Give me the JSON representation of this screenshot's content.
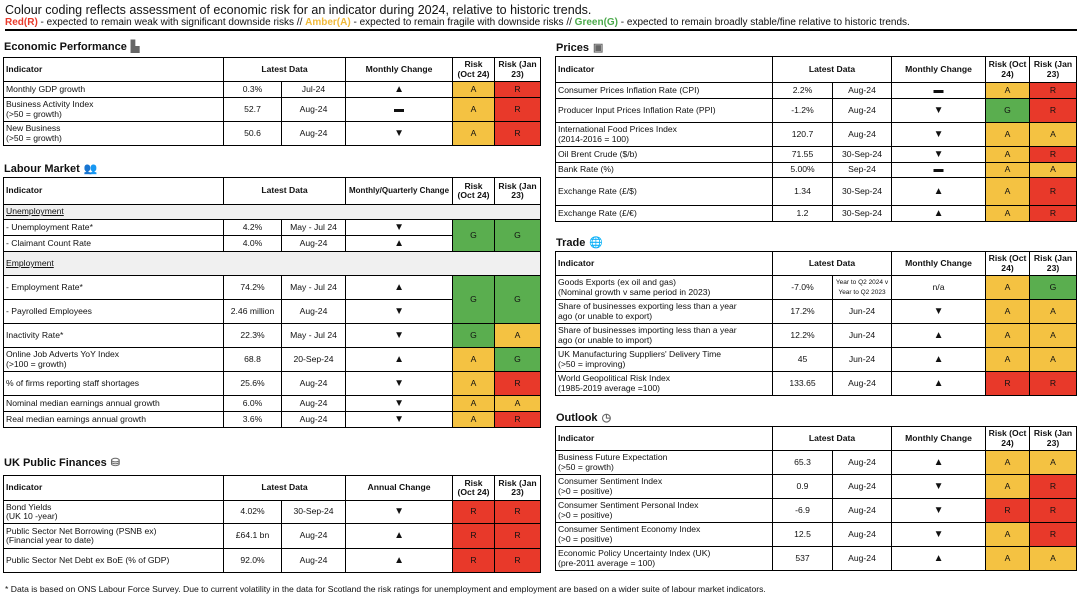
{
  "intro": "Colour coding reflects assessment of economic risk for an indicator during 2024, relative to historic trends.",
  "legend": {
    "red_label": "Red(R)",
    "red_text": " - expected to remain weak with significant downside risks // ",
    "amber_label": "Amber(A)",
    "amber_text": " - expected to remain fragile with downside risks // ",
    "green_label": "Green(G)",
    "green_text": " - expected to remain broadly stable/fine relative to historic trends."
  },
  "colors": {
    "red": "#e8392a",
    "amber": "#f4c242",
    "green": "#5aae4f"
  },
  "change_glyphs": {
    "up": "▲",
    "down": "▼",
    "flat": "▬"
  },
  "tables": [
    {
      "id": "economic",
      "title": "Economic Performance",
      "icon": "factory-icon",
      "icon_glyph": "▙",
      "headers": [
        "Indicator",
        "Latest Data",
        "Monthly Change",
        "Risk (Oct 24)",
        "Risk (Jan 23)"
      ],
      "rows": [
        {
          "indicator": "Monthly GDP growth",
          "value": "0.3%",
          "date": "Jul-24",
          "change": "up",
          "risk_oct": "A",
          "risk_jan": "R"
        },
        {
          "indicator": "Business Activity Index",
          "sub": "(>50 = growth)",
          "value": "52.7",
          "date": "Aug-24",
          "change": "flat",
          "risk_oct": "A",
          "risk_jan": "R"
        },
        {
          "indicator": "New Business",
          "sub": "(>50 = growth)",
          "value": "50.6",
          "date": "Aug-24",
          "change": "down",
          "risk_oct": "A",
          "risk_jan": "R"
        }
      ]
    },
    {
      "id": "labour",
      "title": "Labour Market",
      "icon": "people-icon",
      "icon_glyph": "👥",
      "headers": [
        "Indicator",
        "Latest Data",
        "Monthly/Quarterly Change",
        "Risk (Oct 24)",
        "Risk (Jan 23)"
      ],
      "rows": [
        {
          "group": "Unemployment"
        },
        {
          "indicator": "- Unemployment Rate*",
          "indent": true,
          "value": "4.2%",
          "date": "May - Jul 24",
          "change": "down",
          "risk_oct": "G",
          "risk_jan": "G",
          "span": 2
        },
        {
          "indicator": "- Claimant Count Rate",
          "indent": true,
          "value": "4.0%",
          "date": "Aug-24",
          "change": "up"
        },
        {
          "group": "Employment"
        },
        {
          "indicator": "- Employment Rate*",
          "indent": true,
          "value": "74.2%",
          "date": "May - Jul 24",
          "change": "up",
          "risk_oct": "G",
          "risk_jan": "G",
          "span": 2
        },
        {
          "indicator": "- Payrolled Employees",
          "indent": true,
          "value": "2.46 million",
          "date": "Aug-24",
          "change": "down"
        },
        {
          "indicator": "Inactivity Rate*",
          "value": "22.3%",
          "date": "May - Jul 24",
          "change": "down",
          "risk_oct": "G",
          "risk_jan": "A"
        },
        {
          "indicator": "Online Job Adverts YoY Index",
          "sub": "(>100 = growth)",
          "value": "68.8",
          "date": "20-Sep-24",
          "change": "up",
          "risk_oct": "A",
          "risk_jan": "G"
        },
        {
          "indicator": "% of firms reporting staff shortages",
          "value": "25.6%",
          "date": "Aug-24",
          "change": "down",
          "risk_oct": "A",
          "risk_jan": "R"
        },
        {
          "indicator": "Nominal median earnings annual growth",
          "value": "6.0%",
          "date": "Aug-24",
          "change": "down",
          "risk_oct": "A",
          "risk_jan": "A"
        },
        {
          "indicator": "Real median earnings annual growth",
          "value": "3.6%",
          "date": "Aug-24",
          "change": "down",
          "risk_oct": "A",
          "risk_jan": "R"
        }
      ]
    },
    {
      "id": "public",
      "title": "UK Public Finances",
      "icon": "coins-icon",
      "icon_glyph": "⛁",
      "headers": [
        "Indicator",
        "Latest Data",
        "Annual Change",
        "Risk (Oct 24)",
        "Risk (Jan 23)"
      ],
      "rows": [
        {
          "indicator": "Bond Yields",
          "sub": "(UK 10 -year)",
          "value": "4.02%",
          "date": "30-Sep-24",
          "change": "down",
          "risk_oct": "R",
          "risk_jan": "R"
        },
        {
          "indicator": "Public Sector Net Borrowing (PSNB ex)",
          "sub": "(Financial year to date)",
          "value": "£64.1 bn",
          "date": "Aug-24",
          "change": "up",
          "risk_oct": "R",
          "risk_jan": "R"
        },
        {
          "indicator": "Public Sector Net Debt ex BoE (% of GDP)",
          "value": "92.0%",
          "date": "Aug-24",
          "change": "up",
          "risk_oct": "R",
          "risk_jan": "R"
        }
      ]
    },
    {
      "id": "prices",
      "title": "Prices",
      "icon": "banknote-icon",
      "icon_glyph": "▣",
      "headers": [
        "Indicator",
        "Latest Data",
        "Monthly Change",
        "Risk (Oct 24)",
        "Risk (Jan 23)"
      ],
      "rows": [
        {
          "indicator": "Consumer Prices Inflation Rate (CPI)",
          "value": "2.2%",
          "date": "Aug-24",
          "change": "flat",
          "risk_oct": "A",
          "risk_jan": "R"
        },
        {
          "indicator": "Producer Input Prices Inflation Rate (PPI)",
          "value": "-1.2%",
          "date": "Aug-24",
          "change": "down",
          "risk_oct": "G",
          "risk_jan": "R"
        },
        {
          "indicator": "International Food Prices Index",
          "sub": "(2014-2016 = 100)",
          "value": "120.7",
          "date": "Aug-24",
          "change": "down",
          "risk_oct": "A",
          "risk_jan": "A"
        },
        {
          "indicator": "Oil Brent Crude ($/b)",
          "value": "71.55",
          "date": "30-Sep-24",
          "change": "down",
          "risk_oct": "A",
          "risk_jan": "R"
        },
        {
          "indicator": "Bank Rate (%)",
          "value": "5.00%",
          "date": "Sep-24",
          "change": "flat",
          "risk_oct": "A",
          "risk_jan": "A"
        },
        {
          "indicator": "Exchange Rate (£/$)",
          "value": "1.34",
          "date": "30-Sep-24",
          "change": "up",
          "risk_oct": "A",
          "risk_jan": "R"
        },
        {
          "indicator": "Exchange Rate (£/€)",
          "value": "1.2",
          "date": "30-Sep-24",
          "change": "up",
          "risk_oct": "A",
          "risk_jan": "R"
        }
      ]
    },
    {
      "id": "trade",
      "title": "Trade",
      "icon": "globe-icon",
      "icon_glyph": "🌐",
      "headers": [
        "Indicator",
        "Latest Data",
        "Monthly Change",
        "Risk (Oct 24)",
        "Risk (Jan 23)"
      ],
      "rows": [
        {
          "indicator": "Goods Exports (ex oil and gas)",
          "sub": "(Nominal growth v same period in 2023)",
          "value": "-7.0%",
          "date": "Year to Q2 2024 v Year to Q2 2023",
          "date_small": true,
          "change": "n/a",
          "risk_oct": "A",
          "risk_jan": "G"
        },
        {
          "indicator": "Share of businesses exporting less than a year",
          "sub": "ago (or unable to export)",
          "value": "17.2%",
          "date": "Jun-24",
          "change": "down",
          "risk_oct": "A",
          "risk_jan": "A"
        },
        {
          "indicator": "Share of businesses importing less than a year",
          "sub": "ago (or unable to import)",
          "value": "12.2%",
          "date": "Jun-24",
          "change": "up",
          "risk_oct": "A",
          "risk_jan": "A"
        },
        {
          "indicator": "UK Manufacturing Suppliers' Delivery Time",
          "sub": "(>50 = improving)",
          "value": "45",
          "date": "Jun-24",
          "change": "up",
          "risk_oct": "A",
          "risk_jan": "A"
        },
        {
          "indicator": "World Geopolitical Risk Index",
          "sub": "(1985-2019 average =100)",
          "value": "133.65",
          "date": "Aug-24",
          "change": "up",
          "risk_oct": "R",
          "risk_jan": "R"
        }
      ]
    },
    {
      "id": "outlook",
      "title": "Outlook",
      "icon": "clock-icon",
      "icon_glyph": "◷",
      "headers": [
        "Indicator",
        "Latest Data",
        "Monthly Change",
        "Risk (Oct 24)",
        "Risk (Jan 23)"
      ],
      "rows": [
        {
          "indicator": "Business Future Expectation",
          "sub": "(>50 = growth)",
          "value": "65.3",
          "date": "Aug-24",
          "change": "up",
          "risk_oct": "A",
          "risk_jan": "A"
        },
        {
          "indicator": "Consumer Sentiment Index",
          "sub": "(>0 = positive)",
          "value": "0.9",
          "date": "Aug-24",
          "change": "down",
          "risk_oct": "A",
          "risk_jan": "R"
        },
        {
          "indicator": "Consumer Sentiment Personal Index",
          "sub": "(>0 = positive)",
          "value": "-6.9",
          "date": "Aug-24",
          "change": "down",
          "risk_oct": "R",
          "risk_jan": "R"
        },
        {
          "indicator": "Consumer Sentiment Economy Index",
          "sub": "(>0 = positive)",
          "value": "12.5",
          "date": "Aug-24",
          "change": "down",
          "risk_oct": "A",
          "risk_jan": "R"
        },
        {
          "indicator": "Economic Policy Uncertainty Index (UK)",
          "sub": "(pre-2011 average = 100)",
          "value": "537",
          "date": "Aug-24",
          "change": "up",
          "risk_oct": "A",
          "risk_jan": "A"
        }
      ]
    }
  ],
  "footnote": "* Data is based on ONS Labour Force Survey.  Due to current volatility in the data for Scotland the risk ratings for unemployment and employment are based on a wider suite of labour market indicators."
}
